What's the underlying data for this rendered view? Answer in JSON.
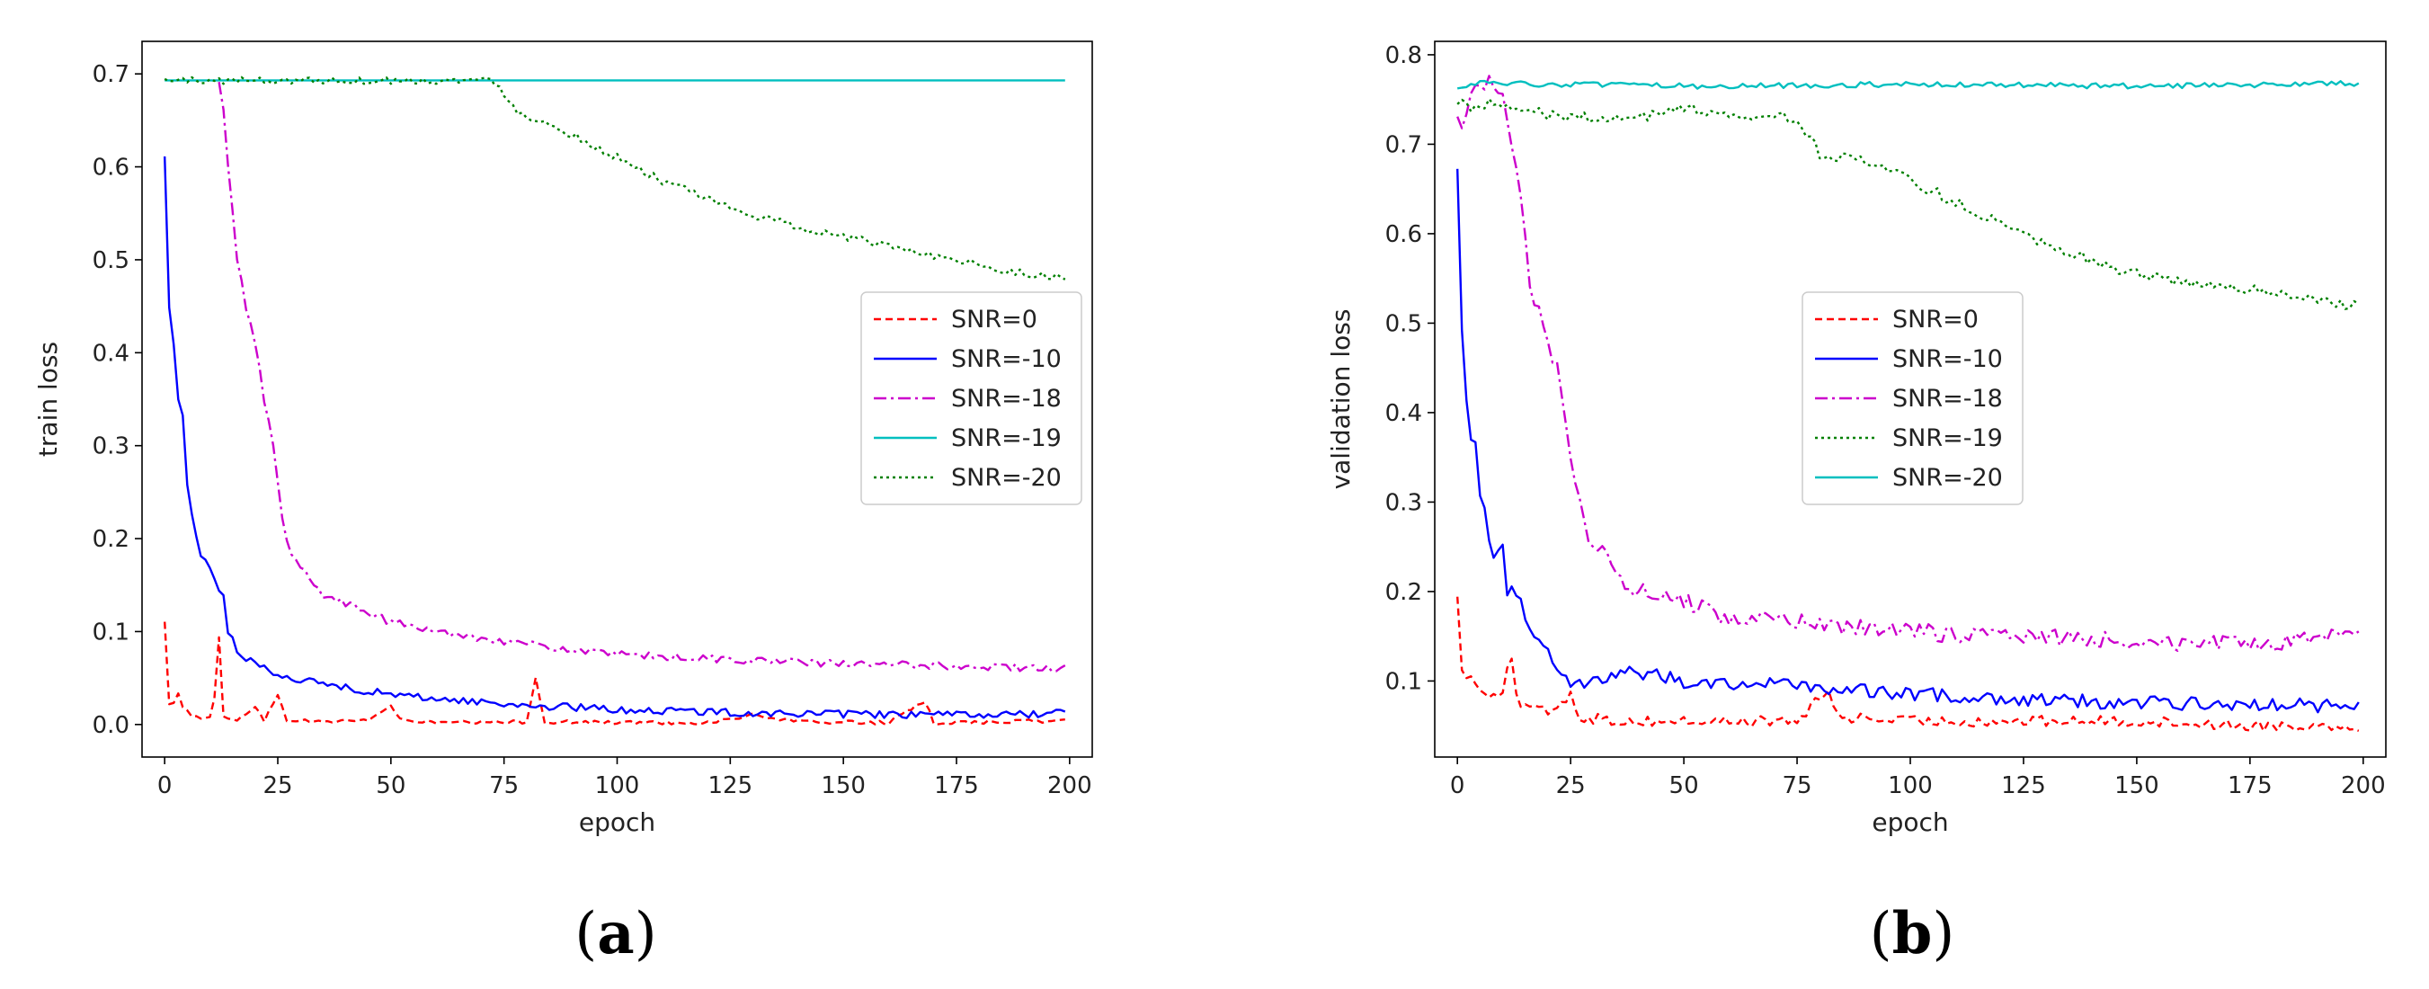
{
  "chart_data": [
    {
      "type": "line",
      "panel_label": {
        "open": "(",
        "letter": "a",
        "close": ")"
      },
      "xlabel": "epoch",
      "ylabel": "train loss",
      "xlim": [
        -5,
        205
      ],
      "ylim": [
        -0.035,
        0.735
      ],
      "xticks": [
        0,
        25,
        50,
        75,
        100,
        125,
        150,
        175,
        200
      ],
      "yticks": [
        0.0,
        0.1,
        0.2,
        0.3,
        0.4,
        0.5,
        0.6,
        0.7
      ],
      "ytick_decimals": 1,
      "legend_position": "center-right",
      "series": [
        {
          "name": "SNR=0",
          "color": "#ff0000",
          "dash": "8,5",
          "key": [
            [
              0,
              0.11
            ],
            [
              1,
              0.02
            ],
            [
              2,
              0.025
            ],
            [
              3,
              0.035
            ],
            [
              4,
              0.02
            ],
            [
              6,
              0.01
            ],
            [
              8,
              0.005
            ],
            [
              10,
              0.008
            ],
            [
              11,
              0.03
            ],
            [
              12,
              0.095
            ],
            [
              13,
              0.01
            ],
            [
              14,
              0.005
            ],
            [
              16,
              0.004
            ],
            [
              20,
              0.02
            ],
            [
              22,
              0.005
            ],
            [
              25,
              0.03
            ],
            [
              27,
              0.005
            ],
            [
              35,
              0.003
            ],
            [
              45,
              0.005
            ],
            [
              50,
              0.02
            ],
            [
              52,
              0.005
            ],
            [
              60,
              0.002
            ],
            [
              70,
              0.002
            ],
            [
              80,
              0.003
            ],
            [
              82,
              0.05
            ],
            [
              84,
              0.003
            ],
            [
              100,
              0.002
            ],
            [
              120,
              0.002
            ],
            [
              130,
              0.01
            ],
            [
              140,
              0.003
            ],
            [
              160,
              0.002
            ],
            [
              168,
              0.025
            ],
            [
              170,
              0.002
            ],
            [
              185,
              0.003
            ],
            [
              199,
              0.004
            ]
          ],
          "noise": 0.002
        },
        {
          "name": "SNR=-10",
          "color": "#0000ff",
          "dash": "",
          "key": [
            [
              0,
              0.61
            ],
            [
              1,
              0.45
            ],
            [
              2,
              0.41
            ],
            [
              3,
              0.35
            ],
            [
              4,
              0.33
            ],
            [
              5,
              0.26
            ],
            [
              6,
              0.23
            ],
            [
              7,
              0.2
            ],
            [
              8,
              0.18
            ],
            [
              10,
              0.17
            ],
            [
              12,
              0.145
            ],
            [
              13,
              0.14
            ],
            [
              14,
              0.1
            ],
            [
              16,
              0.08
            ],
            [
              18,
              0.07
            ],
            [
              20,
              0.065
            ],
            [
              25,
              0.055
            ],
            [
              30,
              0.048
            ],
            [
              35,
              0.044
            ],
            [
              40,
              0.04
            ],
            [
              50,
              0.032
            ],
            [
              60,
              0.028
            ],
            [
              75,
              0.022
            ],
            [
              100,
              0.016
            ],
            [
              125,
              0.013
            ],
            [
              150,
              0.011
            ],
            [
              175,
              0.01
            ],
            [
              199,
              0.012
            ]
          ],
          "noise": 0.004
        },
        {
          "name": "SNR=-18",
          "color": "#cc00cc",
          "dash": "14,5,3,5",
          "key": [
            [
              12,
              0.69
            ],
            [
              13,
              0.66
            ],
            [
              14,
              0.6
            ],
            [
              15,
              0.55
            ],
            [
              16,
              0.5
            ],
            [
              18,
              0.45
            ],
            [
              20,
              0.41
            ],
            [
              22,
              0.35
            ],
            [
              24,
              0.3
            ],
            [
              26,
              0.22
            ],
            [
              28,
              0.18
            ],
            [
              30,
              0.17
            ],
            [
              35,
              0.14
            ],
            [
              40,
              0.13
            ],
            [
              50,
              0.11
            ],
            [
              60,
              0.1
            ],
            [
              75,
              0.09
            ],
            [
              90,
              0.08
            ],
            [
              100,
              0.075
            ],
            [
              125,
              0.07
            ],
            [
              150,
              0.065
            ],
            [
              175,
              0.063
            ],
            [
              199,
              0.06
            ]
          ],
          "noise": 0.004
        },
        {
          "name": "SNR=-19",
          "color": "#00bfbf",
          "dash": "",
          "key": [
            [
              0,
              0.693
            ],
            [
              199,
              0.693
            ]
          ],
          "noise": 0.0
        },
        {
          "name": "SNR=-20",
          "color": "#008000",
          "dash": "3,4",
          "key": [
            [
              0,
              0.693
            ],
            [
              72,
              0.693
            ],
            [
              75,
              0.68
            ],
            [
              78,
              0.66
            ],
            [
              85,
              0.645
            ],
            [
              90,
              0.635
            ],
            [
              100,
              0.61
            ],
            [
              110,
              0.585
            ],
            [
              125,
              0.555
            ],
            [
              140,
              0.535
            ],
            [
              150,
              0.525
            ],
            [
              160,
              0.515
            ],
            [
              170,
              0.505
            ],
            [
              180,
              0.495
            ],
            [
              190,
              0.485
            ],
            [
              199,
              0.48
            ]
          ],
          "noise": 0.004
        }
      ]
    },
    {
      "type": "line",
      "panel_label": {
        "open": "(",
        "letter": "b",
        "close": ")"
      },
      "xlabel": "epoch",
      "ylabel": "validation loss",
      "xlim": [
        -5,
        205
      ],
      "ylim": [
        0.015,
        0.815
      ],
      "xticks": [
        0,
        25,
        50,
        75,
        100,
        125,
        150,
        175,
        200
      ],
      "yticks": [
        0.1,
        0.2,
        0.3,
        0.4,
        0.5,
        0.6,
        0.7,
        0.8
      ],
      "ytick_decimals": 1,
      "legend_position": "center",
      "series": [
        {
          "name": "SNR=0",
          "color": "#ff0000",
          "dash": "8,5",
          "key": [
            [
              0,
              0.2
            ],
            [
              1,
              0.11
            ],
            [
              2,
              0.1
            ],
            [
              3,
              0.11
            ],
            [
              4,
              0.095
            ],
            [
              6,
              0.09
            ],
            [
              8,
              0.085
            ],
            [
              10,
              0.09
            ],
            [
              12,
              0.13
            ],
            [
              13,
              0.08
            ],
            [
              15,
              0.07
            ],
            [
              20,
              0.065
            ],
            [
              25,
              0.085
            ],
            [
              27,
              0.06
            ],
            [
              35,
              0.055
            ],
            [
              50,
              0.055
            ],
            [
              75,
              0.055
            ],
            [
              82,
              0.09
            ],
            [
              84,
              0.06
            ],
            [
              100,
              0.055
            ],
            [
              125,
              0.055
            ],
            [
              150,
              0.055
            ],
            [
              175,
              0.05
            ],
            [
              199,
              0.05
            ]
          ],
          "noise": 0.006
        },
        {
          "name": "SNR=-10",
          "color": "#0000ff",
          "dash": "",
          "key": [
            [
              0,
              0.68
            ],
            [
              1,
              0.5
            ],
            [
              2,
              0.42
            ],
            [
              3,
              0.37
            ],
            [
              4,
              0.37
            ],
            [
              5,
              0.3
            ],
            [
              6,
              0.3
            ],
            [
              7,
              0.25
            ],
            [
              8,
              0.24
            ],
            [
              10,
              0.26
            ],
            [
              11,
              0.2
            ],
            [
              12,
              0.21
            ],
            [
              14,
              0.19
            ],
            [
              16,
              0.16
            ],
            [
              18,
              0.14
            ],
            [
              20,
              0.13
            ],
            [
              22,
              0.12
            ],
            [
              25,
              0.1
            ],
            [
              30,
              0.1
            ],
            [
              40,
              0.11
            ],
            [
              50,
              0.1
            ],
            [
              75,
              0.095
            ],
            [
              100,
              0.085
            ],
            [
              125,
              0.08
            ],
            [
              150,
              0.075
            ],
            [
              175,
              0.075
            ],
            [
              199,
              0.07
            ]
          ],
          "noise": 0.008
        },
        {
          "name": "SNR=-18",
          "color": "#cc00cc",
          "dash": "14,5,3,5",
          "key": [
            [
              0,
              0.74
            ],
            [
              1,
              0.72
            ],
            [
              3,
              0.75
            ],
            [
              6,
              0.77
            ],
            [
              8,
              0.77
            ],
            [
              10,
              0.75
            ],
            [
              12,
              0.7
            ],
            [
              14,
              0.65
            ],
            [
              16,
              0.55
            ],
            [
              18,
              0.51
            ],
            [
              20,
              0.48
            ],
            [
              22,
              0.45
            ],
            [
              24,
              0.38
            ],
            [
              26,
              0.32
            ],
            [
              28,
              0.27
            ],
            [
              30,
              0.25
            ],
            [
              33,
              0.24
            ],
            [
              35,
              0.22
            ],
            [
              40,
              0.2
            ],
            [
              50,
              0.19
            ],
            [
              60,
              0.17
            ],
            [
              75,
              0.165
            ],
            [
              100,
              0.155
            ],
            [
              125,
              0.15
            ],
            [
              150,
              0.145
            ],
            [
              175,
              0.14
            ],
            [
              199,
              0.15
            ]
          ],
          "noise": 0.01
        },
        {
          "name": "SNR=-19",
          "color": "#008000",
          "dash": "3,4",
          "key": [
            [
              0,
              0.75
            ],
            [
              3,
              0.74
            ],
            [
              8,
              0.75
            ],
            [
              10,
              0.74
            ],
            [
              25,
              0.73
            ],
            [
              40,
              0.73
            ],
            [
              50,
              0.74
            ],
            [
              70,
              0.73
            ],
            [
              75,
              0.73
            ],
            [
              80,
              0.69
            ],
            [
              90,
              0.68
            ],
            [
              100,
              0.66
            ],
            [
              110,
              0.635
            ],
            [
              125,
              0.6
            ],
            [
              140,
              0.57
            ],
            [
              150,
              0.555
            ],
            [
              160,
              0.545
            ],
            [
              170,
              0.54
            ],
            [
              180,
              0.535
            ],
            [
              190,
              0.525
            ],
            [
              199,
              0.52
            ]
          ],
          "noise": 0.006
        },
        {
          "name": "SNR=-20",
          "color": "#00bfbf",
          "dash": "",
          "key": [
            [
              0,
              0.765
            ],
            [
              5,
              0.768
            ],
            [
              50,
              0.765
            ],
            [
              100,
              0.767
            ],
            [
              150,
              0.765
            ],
            [
              199,
              0.768
            ]
          ],
          "noise": 0.003
        }
      ]
    }
  ]
}
